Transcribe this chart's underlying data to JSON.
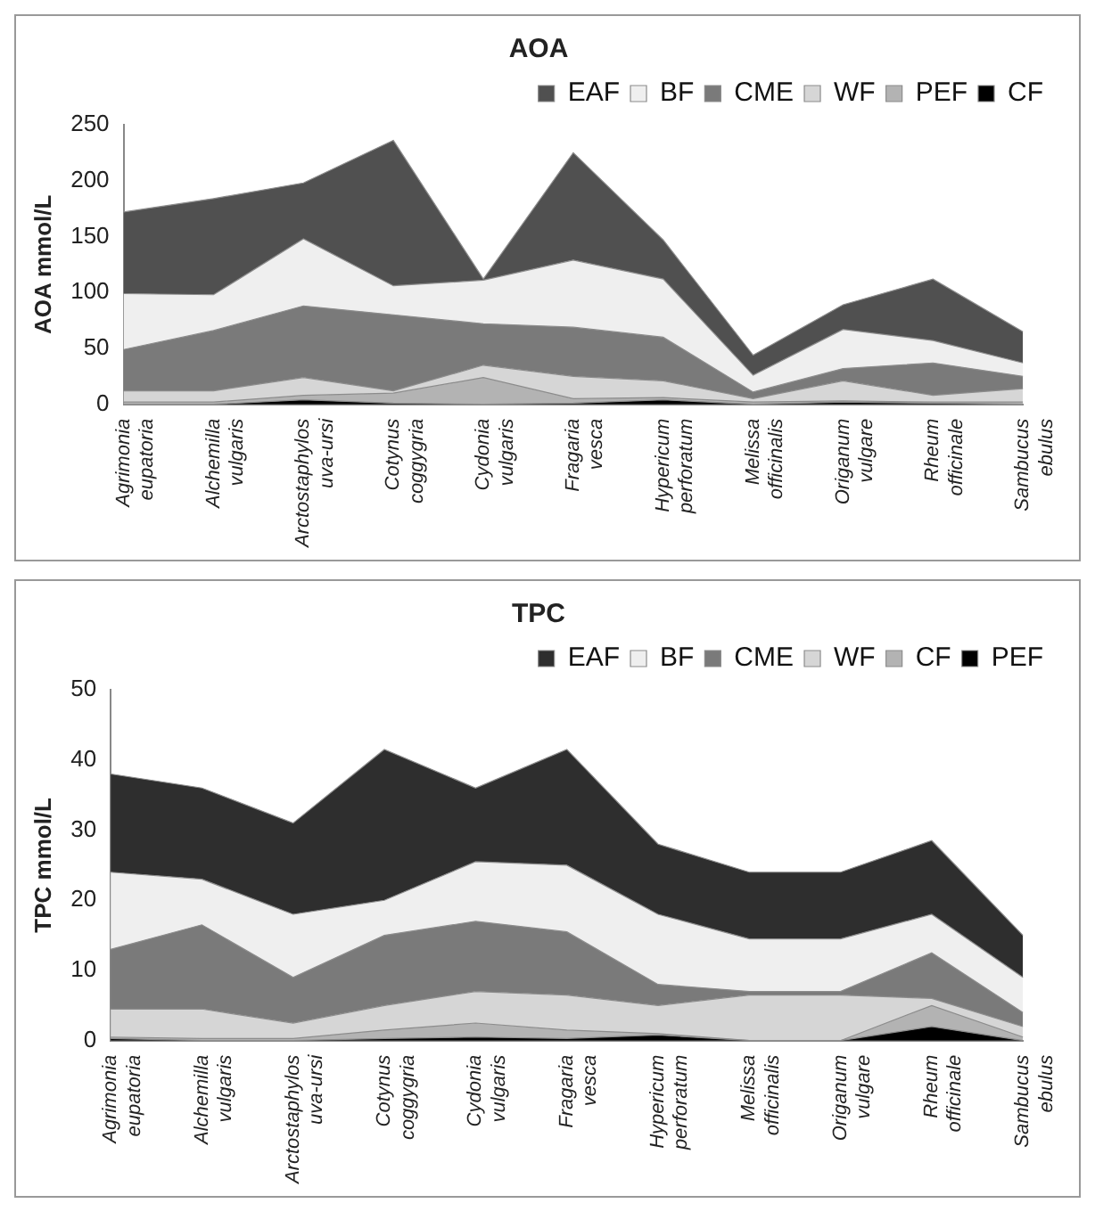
{
  "chart_data": [
    {
      "type": "area",
      "title": "AOA",
      "ylabel": "AOA mmol/L",
      "stacked": true,
      "legend": "top right",
      "grid": false,
      "marker": "none",
      "categories": [
        "Agrimonia eupatoria",
        "Alchemilla vulgaris",
        "Arctostaphylos uva-ursi",
        "Cotynus coggygria",
        "Cydonia vulgaris",
        "Fragaria vesca",
        "Hypericum perforatum",
        "Melissa officinalis",
        "Origanum vulgare",
        "Rheum officinale",
        "Sambucus ebulus"
      ],
      "ylim": [
        0,
        250
      ],
      "yticks": [
        0,
        50,
        100,
        150,
        200,
        250
      ],
      "series": [
        {
          "name": "CF",
          "color": "#000000",
          "values": [
            0,
            0,
            4,
            1,
            0,
            1,
            4,
            0,
            2,
            1,
            0
          ]
        },
        {
          "name": "PEF",
          "color": "#b3b3b3",
          "values": [
            2,
            2,
            4,
            9,
            24,
            4,
            2,
            2,
            1,
            1,
            2
          ]
        },
        {
          "name": "WF",
          "color": "#d6d6d6",
          "values": [
            10,
            10,
            16,
            2,
            11,
            20,
            15,
            3,
            18,
            6,
            12
          ]
        },
        {
          "name": "CME",
          "color": "#7a7a7a",
          "values": [
            37,
            54,
            64,
            68,
            37,
            44,
            39,
            6,
            11,
            29,
            11
          ]
        },
        {
          "name": "BF",
          "color": "#efefef",
          "values": [
            50,
            32,
            60,
            26,
            39,
            60,
            52,
            15,
            35,
            20,
            12
          ]
        },
        {
          "name": "EAF",
          "color": "#505050",
          "values": [
            73,
            86,
            50,
            130,
            1,
            96,
            35,
            18,
            22,
            55,
            28
          ]
        }
      ]
    },
    {
      "type": "area",
      "title": "TPC",
      "ylabel": "TPC mmol/L",
      "stacked": true,
      "legend": "top right",
      "grid": false,
      "marker": "none",
      "categories": [
        "Agrimonia eupatoria",
        "Alchemilla vulgaris",
        "Arctostaphylos uva-ursi",
        "Cotynus coggygria",
        "Cydonia vulgaris",
        "Fragaria vesca",
        "Hypericum perforatum",
        "Melissa officinalis",
        "Origanum vulgare",
        "Rheum officinale",
        "Sambucus ebulus"
      ],
      "ylim": [
        0,
        50
      ],
      "yticks": [
        0,
        10,
        20,
        30,
        40,
        50
      ],
      "series": [
        {
          "name": "PEF",
          "color": "#000000",
          "values": [
            0.3,
            0,
            0,
            0.3,
            0.5,
            0.3,
            0.8,
            0,
            0,
            2,
            0
          ]
        },
        {
          "name": "CF",
          "color": "#b3b3b3",
          "values": [
            0.2,
            0.3,
            0.3,
            1.2,
            2,
            1.2,
            0.2,
            0,
            0,
            3,
            0.5
          ]
        },
        {
          "name": "WF",
          "color": "#d6d6d6",
          "values": [
            4,
            4.2,
            2.2,
            3.5,
            4.5,
            5,
            4,
            6.5,
            6.5,
            1,
            1.5
          ]
        },
        {
          "name": "CME",
          "color": "#7a7a7a",
          "values": [
            8.5,
            12,
            6.5,
            10,
            10,
            9,
            3,
            0.5,
            0.5,
            6.5,
            2
          ]
        },
        {
          "name": "BF",
          "color": "#efefef",
          "values": [
            11,
            6.5,
            9,
            5,
            8.5,
            9.5,
            10,
            7.5,
            7.5,
            5.5,
            5
          ]
        },
        {
          "name": "EAF",
          "color": "#2e2e2e",
          "values": [
            14,
            13,
            13,
            21.5,
            10.5,
            16.5,
            10,
            9.5,
            9.5,
            10.5,
            6
          ]
        }
      ]
    }
  ]
}
